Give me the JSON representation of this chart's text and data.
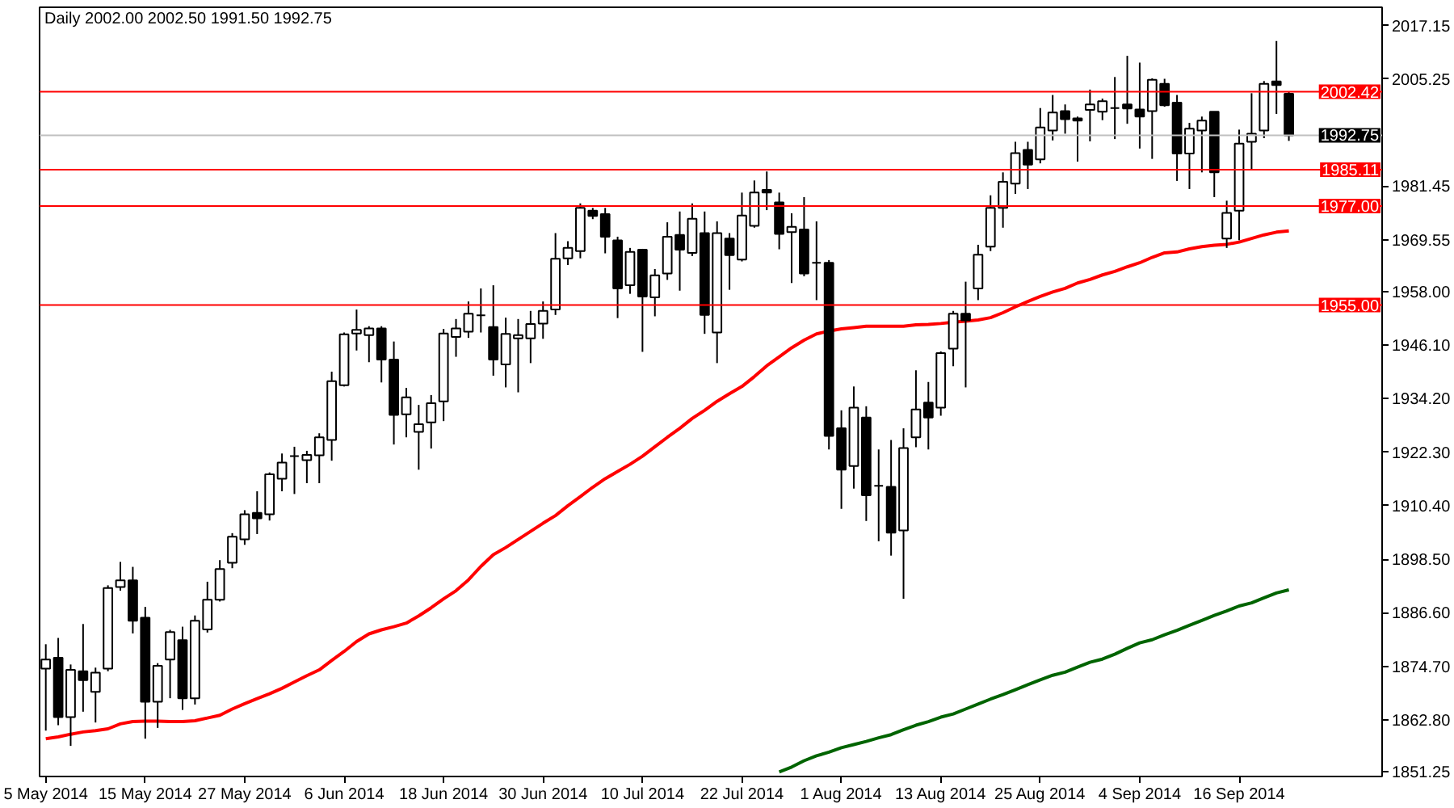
{
  "chart_data": {
    "type": "candlestick",
    "title": "Daily 2002.00 2002.50 1991.50 1992.75",
    "color": "#000000",
    "categories": [
      "5 May 2014",
      null,
      null,
      null,
      null,
      null,
      null,
      null,
      "15 May 2014",
      null,
      null,
      null,
      null,
      null,
      null,
      null,
      "27 May 2014",
      null,
      null,
      null,
      null,
      null,
      null,
      null,
      "6 Jun 2014",
      null,
      null,
      null,
      null,
      null,
      null,
      null,
      "18 Jun 2014",
      null,
      null,
      null,
      null,
      null,
      null,
      null,
      "30 Jun 2014",
      null,
      null,
      null,
      null,
      null,
      null,
      null,
      "10 Jul 2014",
      null,
      null,
      null,
      null,
      null,
      null,
      null,
      "22 Jul 2014",
      null,
      null,
      null,
      null,
      null,
      null,
      null,
      "1 Aug 2014",
      null,
      null,
      null,
      null,
      null,
      null,
      null,
      "13 Aug 2014",
      null,
      null,
      null,
      null,
      null,
      null,
      null,
      "25 Aug 2014",
      null,
      null,
      null,
      null,
      null,
      null,
      null,
      "4 Sep 2014",
      null,
      null,
      null,
      null,
      null,
      null,
      null,
      "16 Sep 2014",
      null,
      null,
      null,
      null
    ],
    "ohlc": [
      [
        1874.2,
        1879.6,
        1860.4,
        1876.2
      ],
      [
        1876.6,
        1881.0,
        1861.6,
        1863.4
      ],
      [
        1863.4,
        1875.1,
        1857.0,
        1873.9
      ],
      [
        1873.6,
        1884.1,
        1864.6,
        1871.6
      ],
      [
        1869.0,
        1874.4,
        1862.2,
        1873.3
      ],
      [
        1874.2,
        1892.7,
        1873.6,
        1892.1
      ],
      [
        1892.3,
        1897.9,
        1891.5,
        1893.8
      ],
      [
        1893.8,
        1896.8,
        1882.0,
        1884.8
      ],
      [
        1885.5,
        1887.9,
        1858.6,
        1866.8
      ],
      [
        1866.8,
        1875.4,
        1861.0,
        1874.8
      ],
      [
        1876.2,
        1882.8,
        1867.6,
        1882.3
      ],
      [
        1880.5,
        1883.5,
        1865.0,
        1867.6
      ],
      [
        1867.6,
        1886.0,
        1866.2,
        1884.8
      ],
      [
        1882.9,
        1893.5,
        1882.2,
        1889.5
      ],
      [
        1889.5,
        1898.3,
        1889.1,
        1896.3
      ],
      [
        1897.7,
        1904.3,
        1896.5,
        1903.5
      ],
      [
        1902.9,
        1909.4,
        1901.7,
        1908.5
      ],
      [
        1908.8,
        1913.6,
        1904.1,
        1907.6
      ],
      [
        1908.5,
        1917.8,
        1907.1,
        1917.4
      ],
      [
        1916.4,
        1922.0,
        1913.6,
        1920.0
      ],
      [
        1921.4,
        1923.5,
        1913.0,
        1921.4
      ],
      [
        1920.5,
        1922.6,
        1915.4,
        1921.7
      ],
      [
        1921.6,
        1926.5,
        1915.4,
        1925.6
      ],
      [
        1925.0,
        1940.2,
        1920.4,
        1938.1
      ],
      [
        1937.2,
        1948.9,
        1936.9,
        1948.5
      ],
      [
        1948.7,
        1954.0,
        1944.9,
        1949.5
      ],
      [
        1948.3,
        1950.3,
        1942.3,
        1949.8
      ],
      [
        1949.8,
        1950.3,
        1937.8,
        1942.9
      ],
      [
        1942.9,
        1946.9,
        1924.0,
        1930.6
      ],
      [
        1930.7,
        1936.6,
        1925.6,
        1934.5
      ],
      [
        1926.8,
        1932.8,
        1918.4,
        1928.5
      ],
      [
        1928.9,
        1935.0,
        1923.1,
        1933.2
      ],
      [
        1933.6,
        1949.7,
        1929.2,
        1948.7
      ],
      [
        1947.9,
        1951.9,
        1943.5,
        1949.8
      ],
      [
        1949.1,
        1955.8,
        1947.7,
        1953.1
      ],
      [
        1952.7,
        1958.7,
        1948.9,
        1952.7
      ],
      [
        1950.1,
        1959.4,
        1939.3,
        1942.9
      ],
      [
        1941.8,
        1952.2,
        1936.7,
        1948.6
      ],
      [
        1947.6,
        1951.9,
        1935.6,
        1948.3
      ],
      [
        1947.6,
        1953.7,
        1942.1,
        1950.8
      ],
      [
        1950.9,
        1955.8,
        1947.5,
        1953.7
      ],
      [
        1954.0,
        1971.0,
        1952.8,
        1965.3
      ],
      [
        1965.4,
        1969.2,
        1963.9,
        1967.7
      ],
      [
        1967.0,
        1977.6,
        1965.4,
        1976.6
      ],
      [
        1976.0,
        1976.6,
        1974.1,
        1974.8
      ],
      [
        1975.2,
        1976.6,
        1966.5,
        1970.2
      ],
      [
        1969.4,
        1970.2,
        1952.1,
        1958.7
      ],
      [
        1959.4,
        1967.7,
        1957.5,
        1966.8
      ],
      [
        1967.3,
        1967.5,
        1944.6,
        1956.9
      ],
      [
        1956.7,
        1963.0,
        1952.5,
        1961.6
      ],
      [
        1962.0,
        1973.4,
        1960.6,
        1970.2
      ],
      [
        1970.6,
        1975.8,
        1958.2,
        1967.3
      ],
      [
        1966.6,
        1977.6,
        1965.9,
        1974.2
      ],
      [
        1971.0,
        1975.8,
        1948.6,
        1952.8
      ],
      [
        1948.9,
        1973.6,
        1942.1,
        1971.0
      ],
      [
        1969.8,
        1971.0,
        1958.4,
        1966.1
      ],
      [
        1965.1,
        1980.0,
        1964.7,
        1974.9
      ],
      [
        1972.6,
        1982.7,
        1972.2,
        1980.0
      ],
      [
        1980.6,
        1984.7,
        1976.1,
        1980.0
      ],
      [
        1977.8,
        1980.0,
        1967.4,
        1970.8
      ],
      [
        1971.2,
        1975.4,
        1959.9,
        1972.4
      ],
      [
        1971.8,
        1979.0,
        1961.4,
        1962.0
      ],
      [
        1964.4,
        1973.6,
        1956.1,
        1964.4
      ],
      [
        1964.4,
        1965.0,
        1922.9,
        1925.9
      ],
      [
        1927.6,
        1931.6,
        1909.7,
        1918.4
      ],
      [
        1919.2,
        1936.9,
        1914.2,
        1932.2
      ],
      [
        1930.0,
        1932.5,
        1907.0,
        1912.7
      ],
      [
        1914.8,
        1922.9,
        1902.5,
        1914.8
      ],
      [
        1914.6,
        1925.0,
        1899.3,
        1904.4
      ],
      [
        1904.9,
        1927.6,
        1889.7,
        1923.2
      ],
      [
        1925.6,
        1940.5,
        1923.4,
        1931.8
      ],
      [
        1933.3,
        1937.9,
        1922.9,
        1930.0
      ],
      [
        1932.2,
        1944.7,
        1930.4,
        1944.3
      ],
      [
        1945.3,
        1953.7,
        1941.4,
        1953.1
      ],
      [
        1953.1,
        1960.2,
        1936.7,
        1951.6
      ],
      [
        1958.7,
        1968.4,
        1956.1,
        1966.2
      ],
      [
        1968.0,
        1979.4,
        1967.0,
        1976.6
      ],
      [
        1976.6,
        1984.5,
        1972.2,
        1982.4
      ],
      [
        1982.0,
        1991.3,
        1979.7,
        1988.8
      ],
      [
        1989.5,
        1991.3,
        1980.8,
        1986.2
      ],
      [
        1987.4,
        1998.8,
        1986.5,
        1994.5
      ],
      [
        1993.8,
        2001.7,
        1991.6,
        1997.8
      ],
      [
        1998.1,
        1999.6,
        1993.1,
        1996.3
      ],
      [
        1996.5,
        1996.9,
        1986.9,
        1996.0
      ],
      [
        1998.4,
        2002.9,
        1991.4,
        1999.6
      ],
      [
        1998.0,
        2000.9,
        1996.1,
        2000.3
      ],
      [
        1998.8,
        2005.7,
        1991.9,
        1998.8
      ],
      [
        1999.6,
        2010.4,
        1995.3,
        1998.7
      ],
      [
        1998.5,
        2008.9,
        1989.8,
        1996.9
      ],
      [
        1998.1,
        2005.4,
        1987.5,
        2005.1
      ],
      [
        2004.2,
        2005.3,
        1999.1,
        1999.4
      ],
      [
        2000.0,
        2001.7,
        1982.6,
        1988.7
      ],
      [
        1988.7,
        1995.5,
        1980.8,
        1994.2
      ],
      [
        1993.8,
        1996.9,
        1984.5,
        1996.0
      ],
      [
        1998.0,
        1998.0,
        1979.0,
        1984.5
      ],
      [
        1969.8,
        1978.2,
        1967.7,
        1975.5
      ],
      [
        1976.0,
        1994.0,
        1969.4,
        1990.9
      ],
      [
        1991.3,
        2002.1,
        1985.0,
        1993.1
      ],
      [
        1993.8,
        2004.8,
        1992.1,
        2004.2
      ],
      [
        2004.7,
        2013.7,
        1997.5,
        2003.9
      ],
      [
        2002.0,
        2002.5,
        1991.5,
        1992.75
      ]
    ],
    "series": [
      {
        "type": "line",
        "color": "#ff0000",
        "values": [
          1858.6,
          1859.0,
          1859.6,
          1860.1,
          1860.4,
          1860.8,
          1861.9,
          1862.4,
          1862.5,
          1862.5,
          1862.4,
          1862.4,
          1862.6,
          1863.2,
          1863.8,
          1865.2,
          1866.4,
          1867.5,
          1868.6,
          1869.8,
          1871.2,
          1872.6,
          1873.9,
          1876.0,
          1878.0,
          1880.2,
          1881.9,
          1882.8,
          1883.5,
          1884.3,
          1885.9,
          1887.7,
          1889.7,
          1891.5,
          1893.9,
          1896.9,
          1899.5,
          1901.1,
          1902.9,
          1904.7,
          1906.5,
          1908.2,
          1910.4,
          1912.4,
          1914.5,
          1916.4,
          1918.0,
          1919.6,
          1921.4,
          1923.5,
          1925.6,
          1927.6,
          1929.8,
          1931.6,
          1933.6,
          1935.3,
          1936.9,
          1939.1,
          1941.5,
          1943.5,
          1945.5,
          1947.2,
          1948.6,
          1949.2,
          1949.7,
          1950.0,
          1950.3,
          1950.3,
          1950.3,
          1950.3,
          1950.6,
          1950.7,
          1950.9,
          1951.2,
          1951.4,
          1951.7,
          1952.2,
          1953.3,
          1954.6,
          1955.8,
          1956.9,
          1957.9,
          1958.7,
          1959.9,
          1960.7,
          1961.7,
          1962.5,
          1963.5,
          1964.4,
          1965.6,
          1966.6,
          1966.8,
          1967.5,
          1968.0,
          1968.3,
          1968.5,
          1969.0,
          1969.8,
          1970.6,
          1971.2,
          1971.5
        ]
      },
      {
        "type": "line",
        "color": "#006400",
        "values": [
          null,
          null,
          null,
          null,
          null,
          null,
          null,
          null,
          null,
          null,
          null,
          null,
          null,
          null,
          null,
          null,
          null,
          null,
          null,
          null,
          null,
          null,
          null,
          null,
          null,
          null,
          null,
          null,
          null,
          null,
          null,
          null,
          null,
          null,
          null,
          null,
          null,
          null,
          null,
          null,
          null,
          null,
          null,
          null,
          null,
          null,
          null,
          null,
          null,
          null,
          null,
          null,
          null,
          null,
          null,
          null,
          null,
          null,
          null,
          1851.2,
          1852.3,
          1853.7,
          1854.8,
          1855.6,
          1856.6,
          1857.3,
          1858.0,
          1858.8,
          1859.5,
          1860.6,
          1861.6,
          1862.4,
          1863.4,
          1864.1,
          1865.2,
          1866.3,
          1867.4,
          1868.4,
          1869.5,
          1870.6,
          1871.7,
          1872.7,
          1873.4,
          1874.5,
          1875.6,
          1876.3,
          1877.4,
          1878.7,
          1879.9,
          1880.6,
          1881.7,
          1882.7,
          1883.8,
          1884.9,
          1886.0,
          1887.0,
          1888.1,
          1888.8,
          1889.9,
          1891.0,
          1891.7
        ]
      }
    ],
    "ylim": [
      1850.2,
      2021.2
    ],
    "yticks": [
      2017.15,
      2005.25,
      1981.45,
      1969.55,
      {
        "value": 1958,
        "label": "1958.00"
      },
      {
        "value": 1946.1,
        "label": "1946.10"
      },
      {
        "value": 1934.2,
        "label": "1934.20"
      },
      {
        "value": 1922.3,
        "label": "1922.30"
      },
      {
        "value": 1910.4,
        "label": "1910.40"
      },
      {
        "value": 1898.5,
        "label": "1898.50"
      },
      {
        "value": 1886.6,
        "label": "1886.60"
      },
      {
        "value": 1874.7,
        "label": "1874.70"
      },
      {
        "value": 1862.8,
        "label": "1862.80"
      },
      1851.25
    ],
    "ref_lines": [
      {
        "axis": "y",
        "value": 2002.42,
        "label": "2002.42",
        "color": "#ff0000"
      },
      {
        "axis": "y",
        "value": 1992.75,
        "label": "1992.75",
        "color": "#c0c0c0"
      },
      {
        "axis": "y",
        "value": 1985.11,
        "label": "1985.11",
        "color": "#ff0000"
      },
      {
        "axis": "y",
        "value": 1977.0,
        "label": "1977.00",
        "color": "#ff0000"
      },
      {
        "axis": "y",
        "value": 1955.0,
        "label": "1955.00",
        "color": "#ff0000"
      }
    ]
  }
}
